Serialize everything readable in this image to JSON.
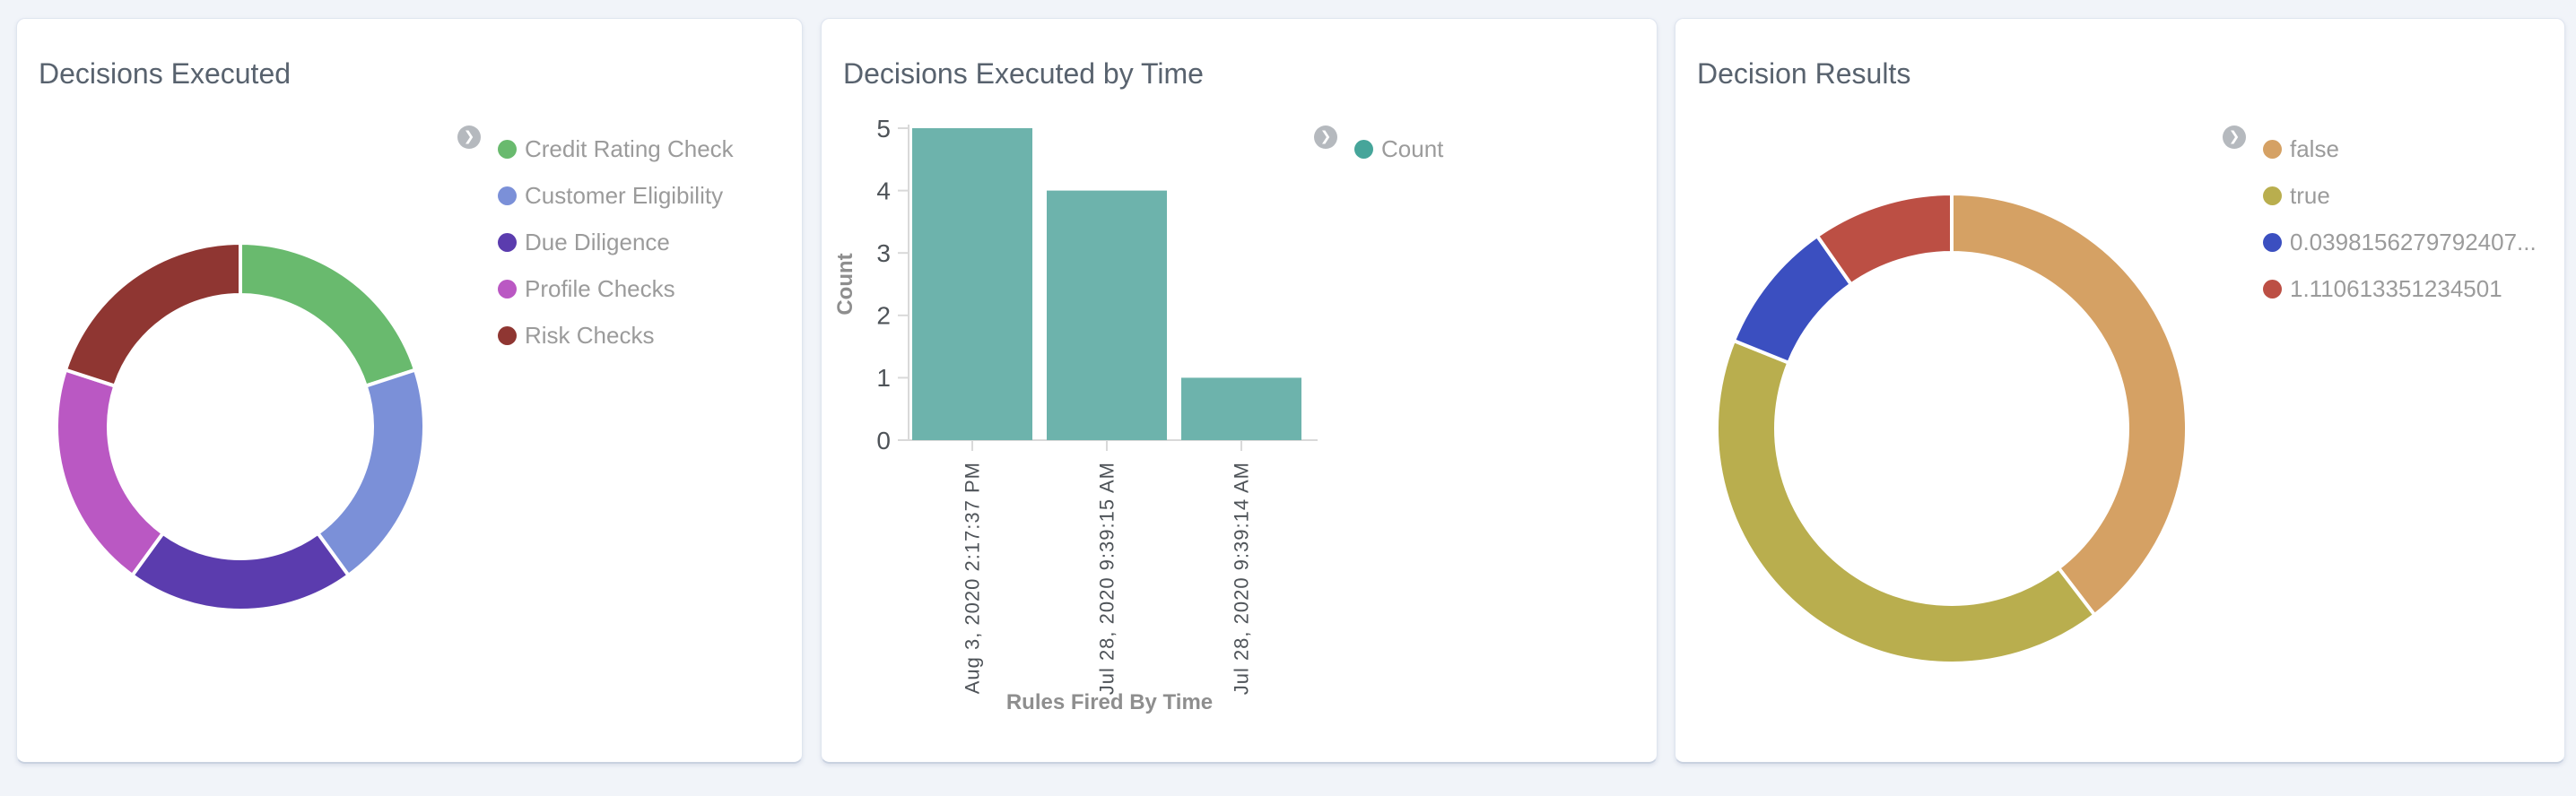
{
  "page": {
    "background_color": "#f1f4f9",
    "card_background": "#ffffff",
    "title_color": "#58626e",
    "legend_text_color": "#9b9b9b",
    "axis_text_color": "#4e5358",
    "axis_title_color": "#8e8e8e",
    "chevron_color": "#b5b9be"
  },
  "cards": [
    {
      "title": "Decisions Executed",
      "legend": {
        "expand_icon": "chevron-right",
        "items": [
          {
            "label": "Credit Rating Check",
            "color": "#69ba6e"
          },
          {
            "label": "Customer Eligibility",
            "color": "#7b90d8"
          },
          {
            "label": "Due Diligence",
            "color": "#5b3cae"
          },
          {
            "label": "Profile Checks",
            "color": "#ba58c3"
          },
          {
            "label": "Risk Checks",
            "color": "#8f3632"
          }
        ]
      },
      "chart_data": {
        "type": "pie",
        "subtype": "donut",
        "categories": [
          "Credit Rating Check",
          "Customer Eligibility",
          "Due Diligence",
          "Profile Checks",
          "Risk Checks"
        ],
        "values": [
          20,
          20,
          20,
          20,
          20
        ],
        "colors": [
          "#69ba6e",
          "#7b90d8",
          "#5b3cae",
          "#ba58c3",
          "#8f3632"
        ],
        "legend_position": "right"
      }
    },
    {
      "title": "Decisions Executed by Time",
      "legend": {
        "expand_icon": "chevron-right",
        "items": [
          {
            "label": "Count",
            "color": "#46a59a"
          }
        ]
      },
      "chart_data": {
        "type": "bar",
        "categories": [
          "Aug 3, 2020 2:17:37 PM",
          "Jul 28, 2020 9:39:15 AM",
          "Jul 28, 2020 9:39:14 AM"
        ],
        "values": [
          5,
          4,
          1
        ],
        "series_name": "Count",
        "bar_color": "#6db3ac",
        "xlabel": "Rules Fired By Time",
        "ylabel": "Count",
        "ylim": [
          0,
          5
        ],
        "yticks": [
          0,
          1,
          2,
          3,
          4,
          5
        ],
        "grid": false,
        "legend_position": "right"
      }
    },
    {
      "title": "Decision Results",
      "legend": {
        "expand_icon": "chevron-right",
        "items": [
          {
            "label": "false",
            "color": "#d5a164"
          },
          {
            "label": "true",
            "color": "#b9ae4e"
          },
          {
            "label": "0.0398156279792407...",
            "color": "#3b4fc0"
          },
          {
            "label": "1.110613351234501",
            "color": "#bc4f44"
          }
        ]
      },
      "chart_data": {
        "type": "pie",
        "subtype": "donut",
        "categories": [
          "false",
          "true",
          "0.0398156279792407...",
          "1.110613351234501"
        ],
        "values": [
          39.6,
          41.5,
          9.2,
          9.7
        ],
        "colors": [
          "#d5a164",
          "#b9ae4e",
          "#3b4fc0",
          "#bc4f44"
        ],
        "legend_position": "right"
      }
    }
  ]
}
